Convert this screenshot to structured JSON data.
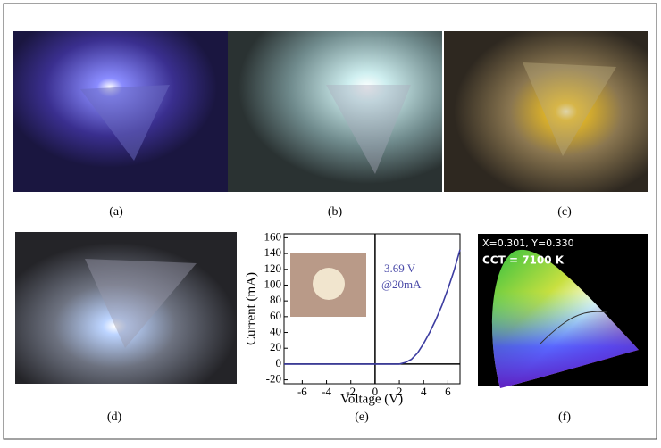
{
  "panels": [
    "(a)",
    "(b)",
    "(c)",
    "(d)",
    "(e)",
    "(f)"
  ],
  "chart_data": {
    "type": "line",
    "xlabel": "Voltage (V)",
    "ylabel": "Current (mA)",
    "annotation": [
      "3.69 V",
      "@20mA"
    ],
    "x": [
      -7.5,
      0,
      2,
      2.5,
      3,
      3.5,
      4,
      4.5,
      5,
      5.5,
      6,
      6.5,
      7
    ],
    "values": [
      0,
      0,
      0,
      2,
      6,
      14,
      26,
      40,
      56,
      74,
      95,
      118,
      145
    ],
    "color": "#3c3ca0",
    "xlim": [
      -7.5,
      7
    ],
    "xticks": [
      -6,
      -4,
      -2,
      0,
      2,
      4,
      6
    ],
    "ylim": [
      -25,
      165
    ],
    "yticks": [
      -20,
      0,
      20,
      40,
      60,
      80,
      100,
      120,
      140,
      160
    ]
  },
  "cie": {
    "coordinates": "X=0.301, Y=0.330",
    "cct": "CCT = 7100 K"
  }
}
